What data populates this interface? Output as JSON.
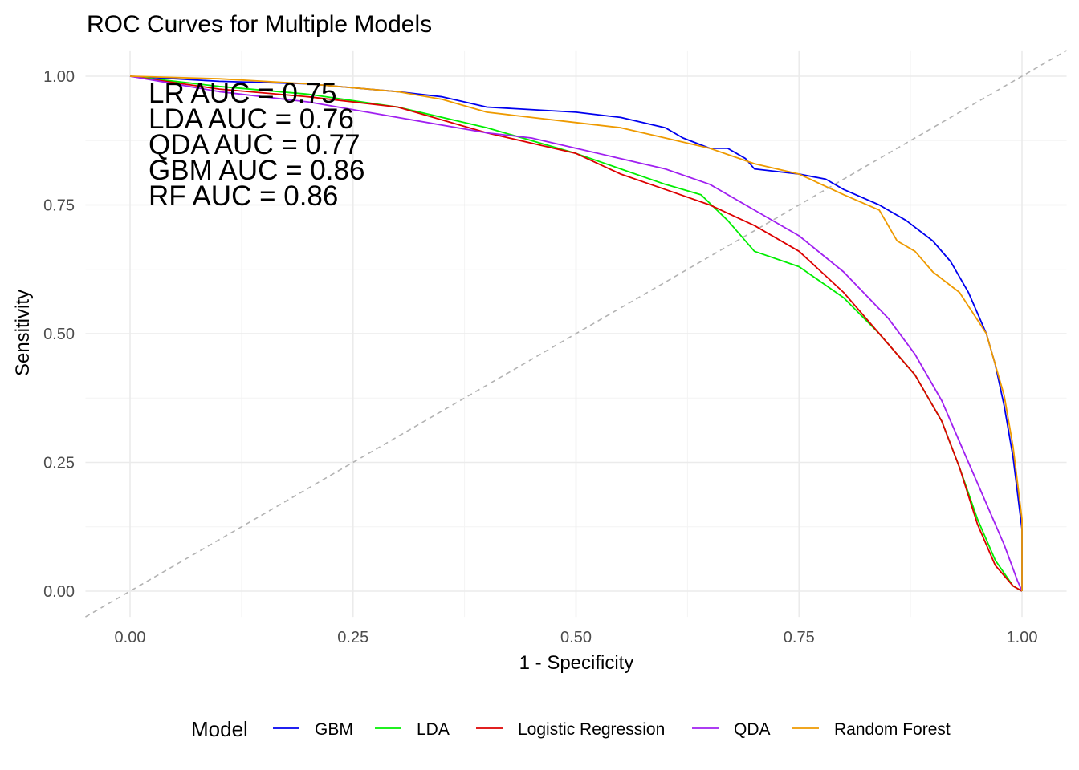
{
  "chart_data": {
    "type": "line",
    "title": "ROC Curves for Multiple Models",
    "xlabel": "1 - Specificity",
    "ylabel": "Sensitivity",
    "xlim": [
      -0.05,
      1.05
    ],
    "ylim": [
      -0.05,
      1.05
    ],
    "xticks": [
      0,
      0.25,
      0.5,
      0.75,
      1
    ],
    "xtick_labels": [
      "0.00",
      "0.25",
      "0.50",
      "0.75",
      "1.00"
    ],
    "yticks": [
      0,
      0.25,
      0.5,
      0.75,
      1
    ],
    "ytick_labels": [
      "0.00",
      "0.25",
      "0.50",
      "0.75",
      "1.00"
    ],
    "grid": true,
    "legend": {
      "title": "Model",
      "position": "bottom"
    },
    "reference_line": {
      "style": "dashed",
      "color": "#b3b3b3",
      "slope": 1,
      "intercept": 0
    },
    "annotations": [
      "LR AUC = 0.75",
      "LDA AUC = 0.76",
      "QDA AUC = 0.77",
      "GBM AUC = 0.86",
      "RF AUC = 0.86"
    ],
    "series": [
      {
        "name": "GBM",
        "color": "#0000ee",
        "x": [
          0.0,
          0.1,
          0.2,
          0.3,
          0.35,
          0.4,
          0.5,
          0.55,
          0.6,
          0.62,
          0.65,
          0.67,
          0.69,
          0.7,
          0.75,
          0.78,
          0.8,
          0.84,
          0.87,
          0.9,
          0.92,
          0.94,
          0.96,
          0.97,
          0.98,
          0.99,
          1.0,
          1.0
        ],
        "y": [
          1.0,
          0.99,
          0.985,
          0.97,
          0.96,
          0.94,
          0.93,
          0.92,
          0.9,
          0.88,
          0.86,
          0.86,
          0.84,
          0.82,
          0.81,
          0.8,
          0.78,
          0.75,
          0.72,
          0.68,
          0.64,
          0.58,
          0.5,
          0.44,
          0.36,
          0.26,
          0.12,
          0.0
        ]
      },
      {
        "name": "LDA",
        "color": "#00ee00",
        "x": [
          0.0,
          0.1,
          0.2,
          0.3,
          0.4,
          0.5,
          0.55,
          0.6,
          0.64,
          0.67,
          0.7,
          0.75,
          0.8,
          0.84,
          0.88,
          0.91,
          0.93,
          0.95,
          0.97,
          0.99,
          1.0
        ],
        "y": [
          1.0,
          0.98,
          0.965,
          0.94,
          0.9,
          0.85,
          0.82,
          0.79,
          0.77,
          0.72,
          0.66,
          0.63,
          0.57,
          0.5,
          0.42,
          0.33,
          0.24,
          0.14,
          0.06,
          0.01,
          0.0
        ]
      },
      {
        "name": "Logistic Regression",
        "color": "#dd0000",
        "x": [
          0.0,
          0.1,
          0.2,
          0.3,
          0.4,
          0.5,
          0.55,
          0.6,
          0.65,
          0.7,
          0.75,
          0.8,
          0.84,
          0.88,
          0.91,
          0.93,
          0.95,
          0.97,
          0.99,
          1.0
        ],
        "y": [
          1.0,
          0.975,
          0.96,
          0.94,
          0.89,
          0.85,
          0.81,
          0.78,
          0.75,
          0.71,
          0.66,
          0.58,
          0.5,
          0.42,
          0.33,
          0.24,
          0.13,
          0.05,
          0.01,
          0.0
        ]
      },
      {
        "name": "QDA",
        "color": "#a020f0",
        "x": [
          0.0,
          0.1,
          0.2,
          0.3,
          0.4,
          0.45,
          0.5,
          0.55,
          0.6,
          0.65,
          0.7,
          0.75,
          0.8,
          0.85,
          0.88,
          0.91,
          0.94,
          0.96,
          0.98,
          0.995,
          1.0
        ],
        "y": [
          1.0,
          0.97,
          0.95,
          0.92,
          0.89,
          0.88,
          0.86,
          0.84,
          0.82,
          0.79,
          0.74,
          0.69,
          0.62,
          0.53,
          0.46,
          0.37,
          0.25,
          0.17,
          0.09,
          0.02,
          0.0
        ]
      },
      {
        "name": "Random Forest",
        "color": "#ee9a00",
        "x": [
          0.0,
          0.1,
          0.2,
          0.3,
          0.35,
          0.4,
          0.5,
          0.55,
          0.6,
          0.65,
          0.7,
          0.75,
          0.8,
          0.84,
          0.86,
          0.88,
          0.9,
          0.93,
          0.96,
          0.97,
          0.98,
          0.99,
          1.0,
          1.0
        ],
        "y": [
          1.0,
          0.995,
          0.985,
          0.97,
          0.955,
          0.93,
          0.91,
          0.9,
          0.88,
          0.86,
          0.83,
          0.81,
          0.77,
          0.74,
          0.68,
          0.66,
          0.62,
          0.58,
          0.5,
          0.44,
          0.38,
          0.28,
          0.14,
          0.0
        ]
      }
    ]
  }
}
